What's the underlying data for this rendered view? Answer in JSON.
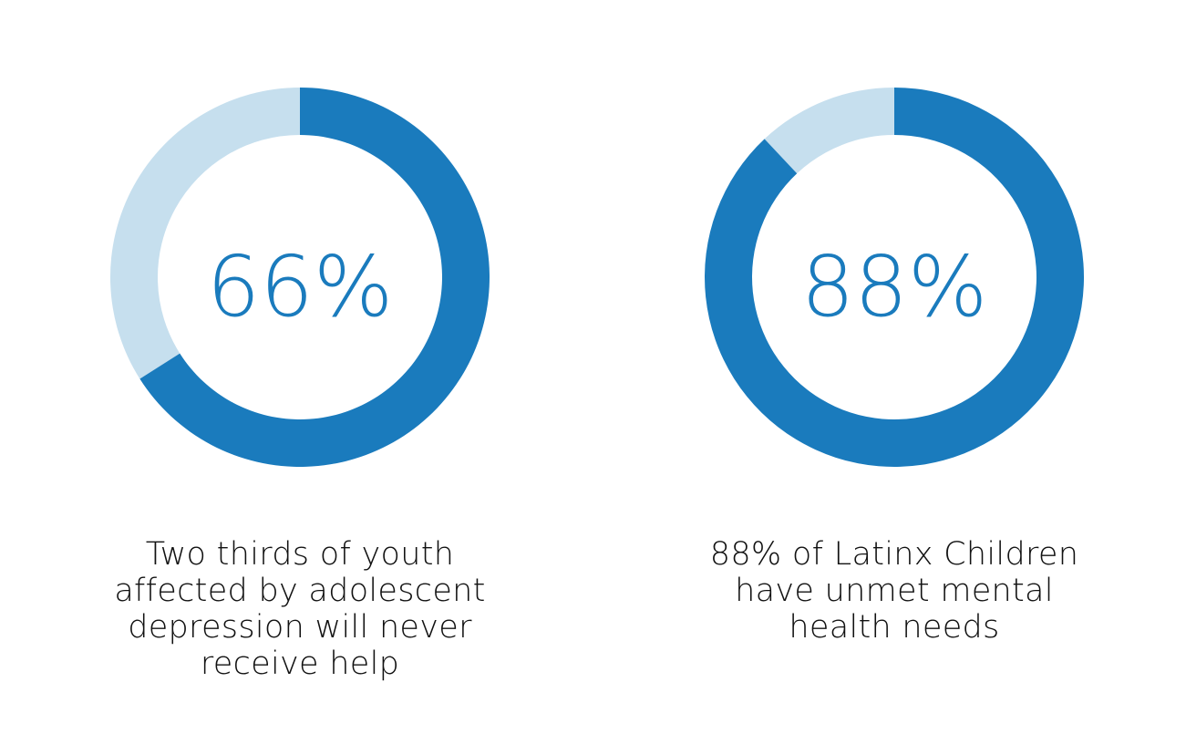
{
  "colors": {
    "filled": "#1a7bbd",
    "remaining": "#c6dfee",
    "label": "#1a7bbd"
  },
  "chart_data": [
    {
      "type": "pie",
      "variant": "donut",
      "value_percent": 66,
      "center_label": "66%",
      "caption": "Two thirds of youth affected by adolescent depression will never receive help"
    },
    {
      "type": "pie",
      "variant": "donut",
      "value_percent": 88,
      "center_label": "88%",
      "caption": "88% of Latinx Children have unmet mental health needs"
    }
  ]
}
